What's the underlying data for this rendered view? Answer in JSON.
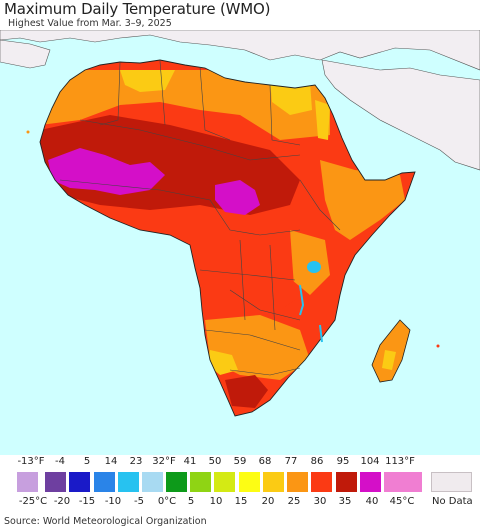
{
  "title": "Maximum Daily Temperature (WMO)",
  "subtitle": "Highest Value from Mar. 3–9, 2025",
  "source": "Source: World Meteorological Organization",
  "map": {
    "ocean_color": "#cfffff",
    "land_outside_color": "#f2eef2",
    "border_color": "#555555"
  },
  "legend": {
    "fahrenheit_labels": [
      "-13°F",
      "-4",
      "5",
      "14",
      "23",
      "32°F",
      "41",
      "50",
      "59",
      "68",
      "77",
      "86",
      "95",
      "104",
      "113°F"
    ],
    "celsius_labels": [
      "-25°C",
      "-20",
      "-15",
      "-10",
      "-5",
      "0°C",
      "5",
      "10",
      "15",
      "20",
      "25",
      "30",
      "35",
      "40",
      "45°C"
    ],
    "colors": [
      "#c79fde",
      "#6e3fa0",
      "#1a1ac8",
      "#2a84e8",
      "#27c2f0",
      "#a8daf2",
      "#0d9a1a",
      "#8fd414",
      "#d4ea14",
      "#fdfd14",
      "#fbcb14",
      "#fb9614",
      "#fb3a14",
      "#c01a0a",
      "#d40fc8",
      "#f07ed2"
    ],
    "nodata_label": "No Data",
    "nodata_color": "#f0ebee"
  }
}
